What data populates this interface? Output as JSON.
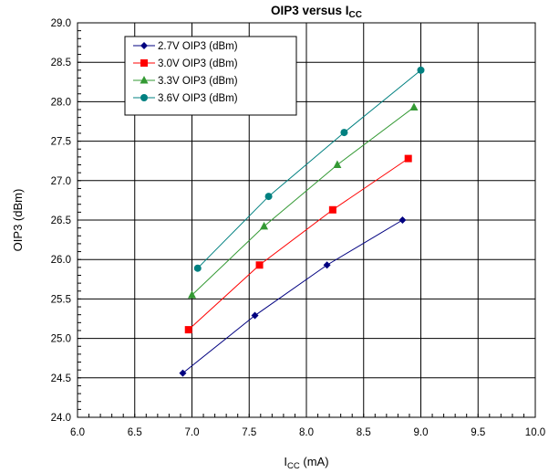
{
  "chart_data": {
    "type": "line",
    "title_main": "OIP3 versus I",
    "title_sub": "CC",
    "xlabel_main": "I",
    "xlabel_sub": "CC",
    "xlabel_unit": " (mA)",
    "ylabel": "OIP3 (dBm)",
    "xlim": [
      6.0,
      10.0
    ],
    "ylim": [
      24.0,
      29.0
    ],
    "x_ticks": [
      "6.0",
      "6.5",
      "7.0",
      "7.5",
      "8.0",
      "8.5",
      "9.0",
      "9.5",
      "10.0"
    ],
    "y_ticks": [
      "24.0",
      "24.5",
      "25.0",
      "25.5",
      "26.0",
      "26.5",
      "27.0",
      "27.5",
      "28.0",
      "28.5",
      "29.0"
    ],
    "grid": true,
    "legend_position": "top-left",
    "series": [
      {
        "name": "2.7V OIP3 (dBm)",
        "color": "#000080",
        "marker": "diamond",
        "x": [
          6.92,
          7.55,
          8.18,
          8.84
        ],
        "y": [
          24.56,
          25.29,
          25.93,
          26.5
        ]
      },
      {
        "name": "3.0V OIP3 (dBm)",
        "color": "#ff0000",
        "marker": "square",
        "x": [
          6.97,
          7.59,
          8.23,
          8.89
        ],
        "y": [
          25.11,
          25.93,
          26.63,
          27.28
        ]
      },
      {
        "name": "3.3V OIP3 (dBm)",
        "color": "#339933",
        "marker": "triangle",
        "x": [
          7.0,
          7.63,
          8.27,
          8.94
        ],
        "y": [
          25.55,
          26.42,
          27.2,
          27.93
        ]
      },
      {
        "name": "3.6V OIP3 (dBm)",
        "color": "#008080",
        "marker": "circle",
        "x": [
          7.05,
          7.67,
          8.33,
          9.0
        ],
        "y": [
          25.89,
          26.8,
          27.61,
          28.4
        ]
      }
    ]
  }
}
